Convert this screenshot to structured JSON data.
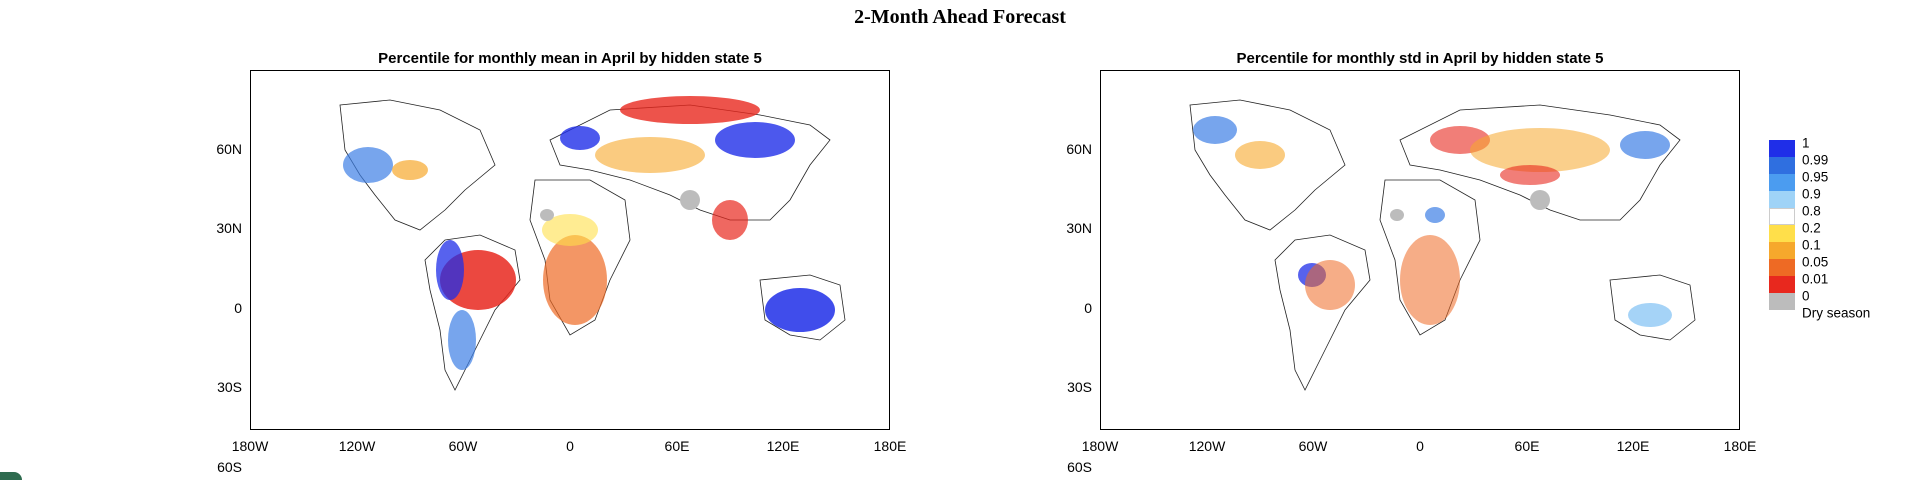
{
  "title": "2-Month Ahead Forecast",
  "panels": [
    {
      "title": "Percentile for monthly mean in April by hidden state 5",
      "y_ticks": [
        "60N",
        "30N",
        "0",
        "30S",
        "60S"
      ],
      "x_ticks": [
        "180W",
        "120W",
        "60W",
        "0",
        "60E",
        "120E",
        "180E"
      ]
    },
    {
      "title": "Percentile for monthly std in April by hidden state 5",
      "y_ticks": [
        "60N",
        "30N",
        "0",
        "30S",
        "60S"
      ],
      "x_ticks": [
        "180W",
        "120W",
        "60W",
        "0",
        "60E",
        "120E",
        "180E"
      ]
    }
  ],
  "legend": {
    "ticks": [
      "1",
      "0.99",
      "0.95",
      "0.9",
      "0.8",
      "0.2",
      "0.1",
      "0.05",
      "0.01",
      "0",
      "Dry season"
    ],
    "colors": [
      "#1f2ee8",
      "#2f6fe0",
      "#4b9cf0",
      "#9fd3f7",
      "#ffffff",
      "#ffdf4a",
      "#f6a82c",
      "#ee6a24",
      "#e8281e",
      "#bcbcbc"
    ]
  },
  "colors": {
    "strong_blue": "#1f2ee8",
    "blue": "#3d7fe6",
    "light_blue": "#8fc8f5",
    "yellow": "#ffdf4a",
    "orange": "#f6a82c",
    "dark_orange": "#ee6a24",
    "red": "#e8281e",
    "dry_gray": "#bcbcbc"
  }
}
